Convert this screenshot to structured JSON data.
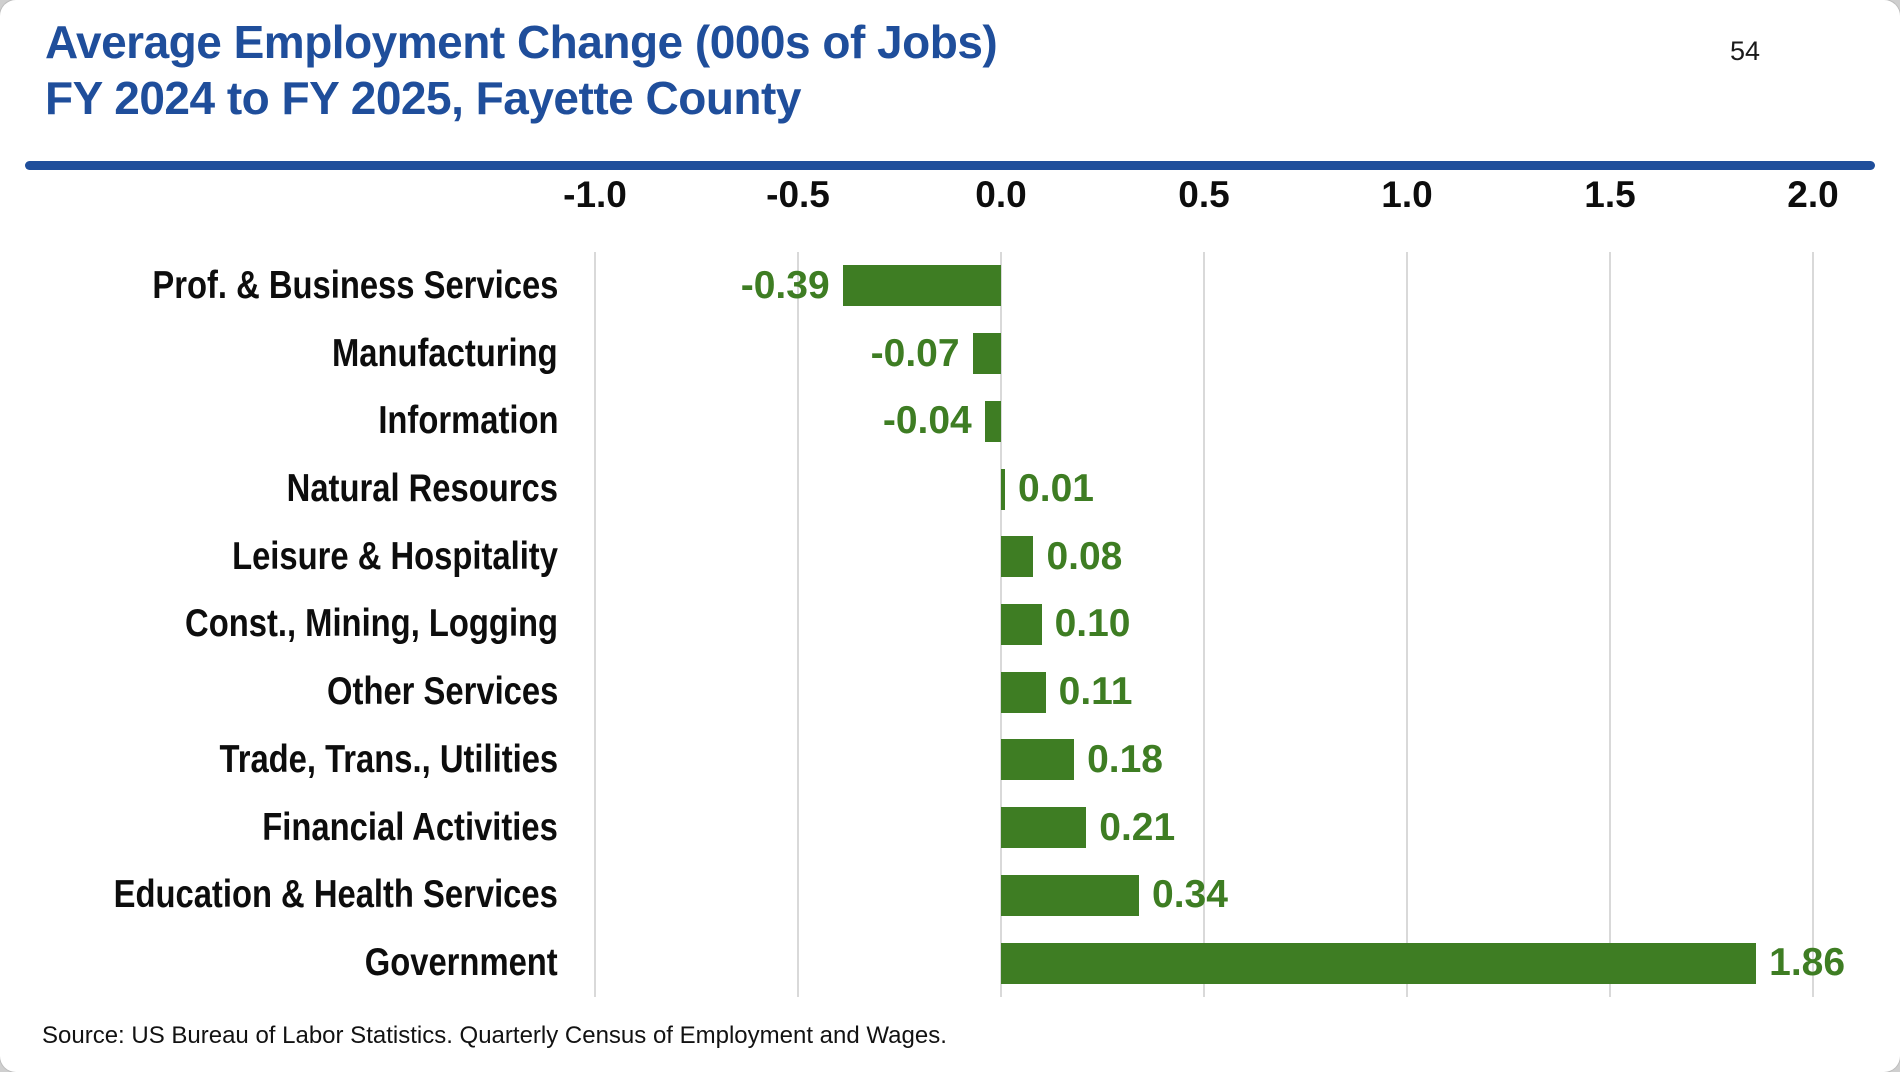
{
  "page": {
    "number": "54"
  },
  "header": {
    "title_line1": "Average Employment Change (000s of Jobs)",
    "title_line2": "FY 2024 to FY 2025, Fayette County"
  },
  "footer": {
    "source": "Source: US Bureau of Labor Statistics. Quarterly Census of Employment and Wages."
  },
  "colors": {
    "title_blue": "#1F4E9B",
    "divider_blue": "#1F4E9B",
    "bar_green": "#3E7D23",
    "value_green": "#3E7D23",
    "gridline_gray": "#D9D9D9",
    "text_black": "#0D0D0D"
  },
  "chart_data": {
    "type": "bar",
    "orientation": "horizontal",
    "title": "Average Employment Change (000s of Jobs) FY 2024 to FY 2025, Fayette County",
    "categories": [
      "Prof. & Business Services",
      "Manufacturing",
      "Information",
      "Natural Resourcs",
      "Leisure & Hospitality",
      "Const., Mining, Logging",
      "Other Services",
      "Trade, Trans., Utilities",
      "Financial Activities",
      "Education & Health Services",
      "Government"
    ],
    "values": [
      -0.39,
      -0.07,
      -0.04,
      0.01,
      0.08,
      0.1,
      0.11,
      0.18,
      0.21,
      0.34,
      1.86
    ],
    "value_labels": [
      "-0.39",
      "-0.07",
      "-0.04",
      "0.01",
      "0.08",
      "0.10",
      "0.11",
      "0.18",
      "0.21",
      "0.34",
      "1.86"
    ],
    "axis": {
      "ticks": [
        -1.0,
        -0.5,
        0.0,
        0.5,
        1.0,
        1.5,
        2.0
      ],
      "tick_labels": [
        "-1.0",
        "-0.5",
        "0.0",
        "0.5",
        "1.0",
        "1.5",
        "2.0"
      ],
      "min": -1.0,
      "max": 2.0,
      "grid": true,
      "legend": "none"
    }
  }
}
